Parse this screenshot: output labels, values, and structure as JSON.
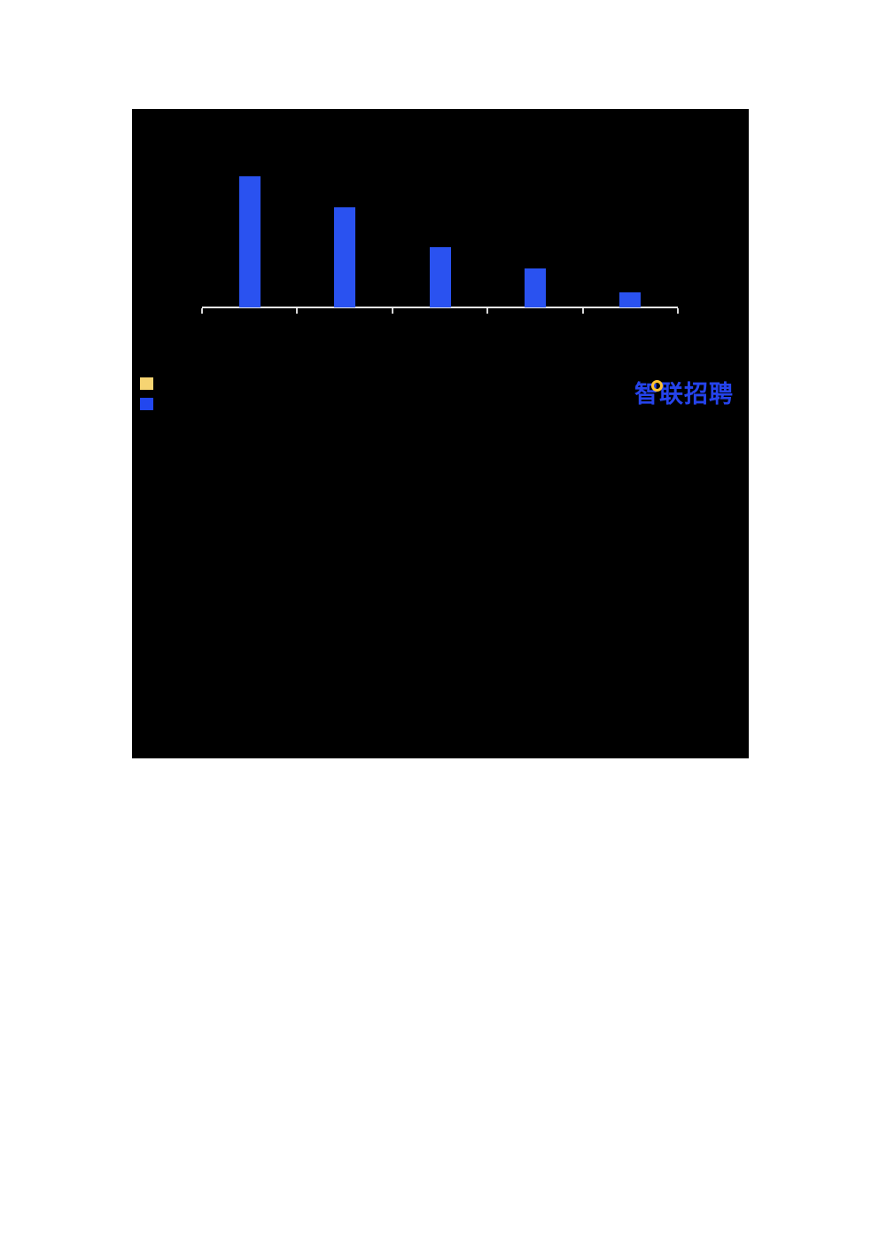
{
  "page": {
    "background_color": "#ffffff"
  },
  "card": {
    "background_color": "#000000"
  },
  "chart_data": {
    "type": "bar",
    "title": "",
    "categories": [
      "",
      "",
      "",
      "",
      ""
    ],
    "values": [
      148,
      113,
      68,
      44,
      17
    ],
    "value_unit": "px-height-estimate",
    "xlabel": "",
    "ylabel": "",
    "ylim": [
      0,
      160
    ],
    "grid": false,
    "bar_color": "#2a52f0",
    "axis_line_color": "#e9e9e9",
    "tick_color": "#d6d6d6",
    "legend_position": "bottom-left",
    "legend": [
      {
        "label": "",
        "color": "#f6d472"
      },
      {
        "label": "",
        "color": "#2247ef"
      }
    ]
  },
  "logo": {
    "text": "智联招聘",
    "color": "#2543eb",
    "dot_color": "#ffc331"
  }
}
